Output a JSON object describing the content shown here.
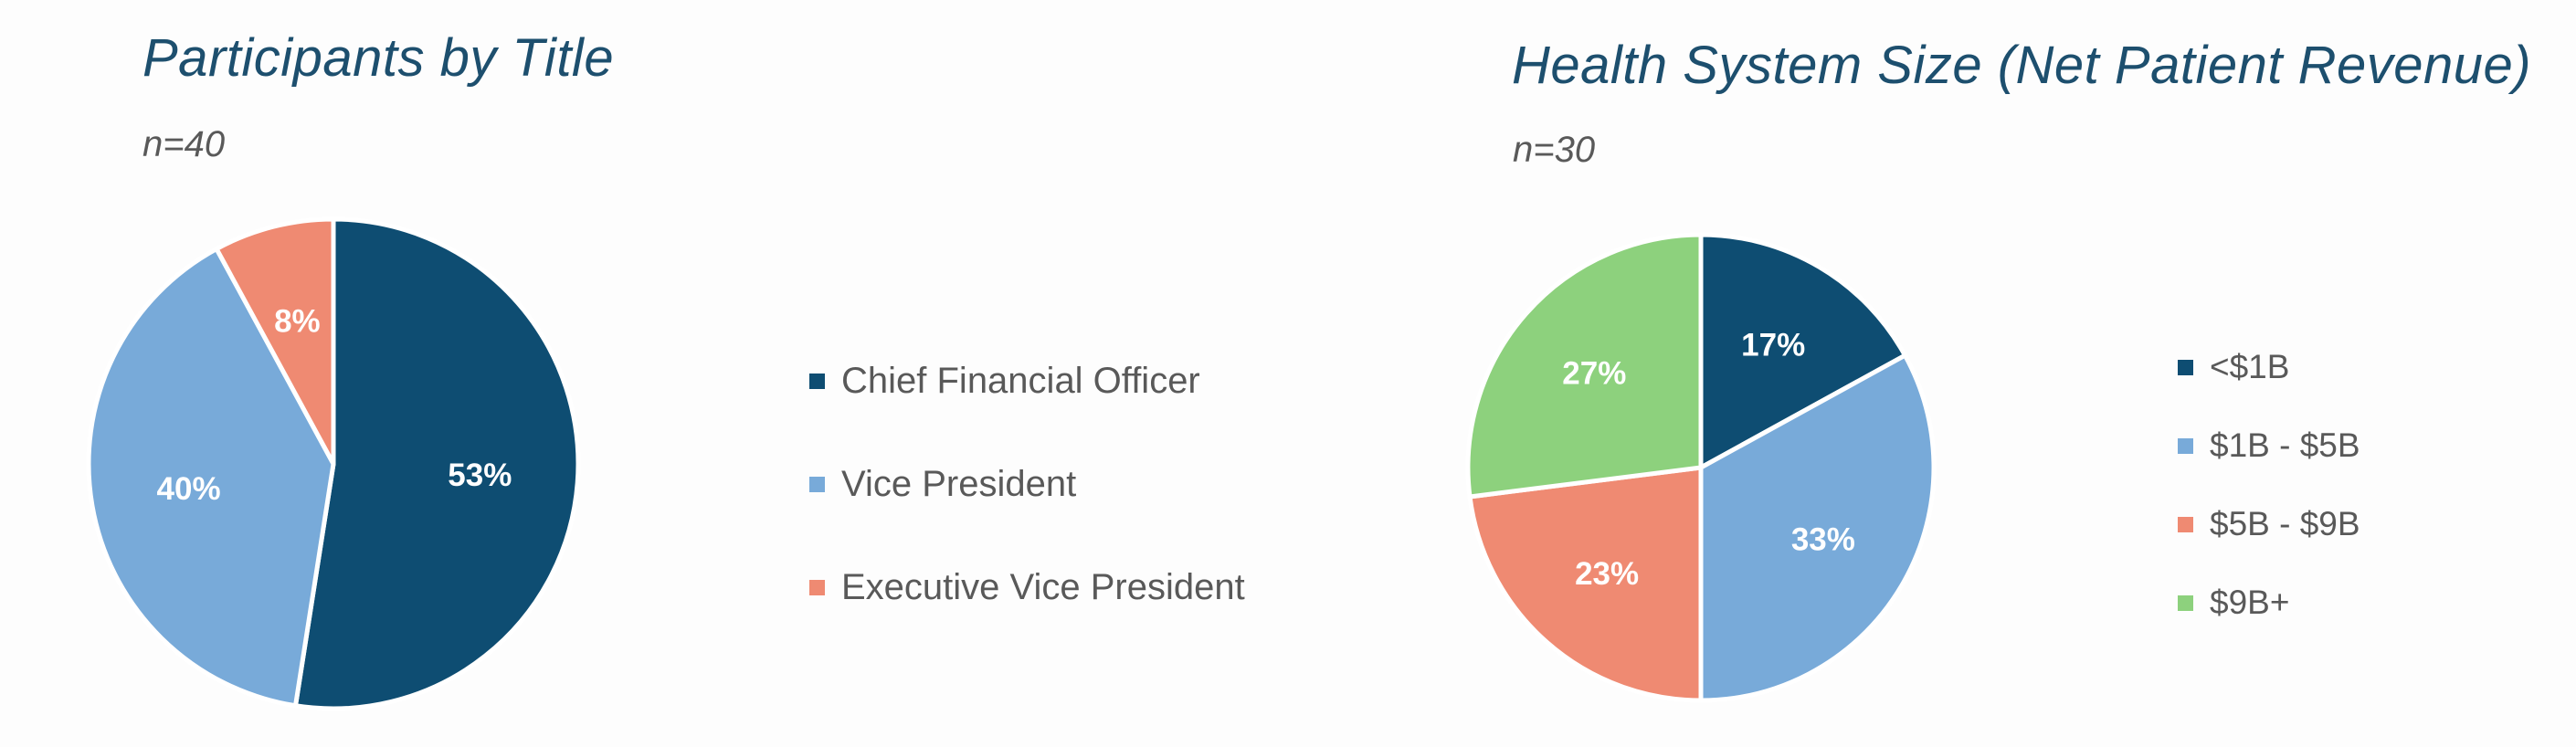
{
  "chart_data": [
    {
      "type": "pie",
      "title": "Participants by Title",
      "subtitle": "n=40",
      "categories": [
        "Chief Financial Officer",
        "Vice President",
        "Executive Vice President"
      ],
      "values": [
        53,
        40,
        8
      ],
      "value_labels": [
        "53%",
        "40%",
        "8%"
      ],
      "colors": [
        "#0e4d72",
        "#78aad9",
        "#ef8a72"
      ],
      "legend_position": "right"
    },
    {
      "type": "pie",
      "title": "Health System Size (Net Patient Revenue)",
      "subtitle": "n=30",
      "categories": [
        "<$1B",
        "$1B - $5B",
        "$5B - $9B",
        "$9B+"
      ],
      "values": [
        17,
        33,
        23,
        27
      ],
      "value_labels": [
        "17%",
        "33%",
        "23%",
        "27%"
      ],
      "colors": [
        "#0e4d72",
        "#78aad9",
        "#ef8a72",
        "#8dd17d"
      ],
      "legend_position": "right"
    }
  ]
}
